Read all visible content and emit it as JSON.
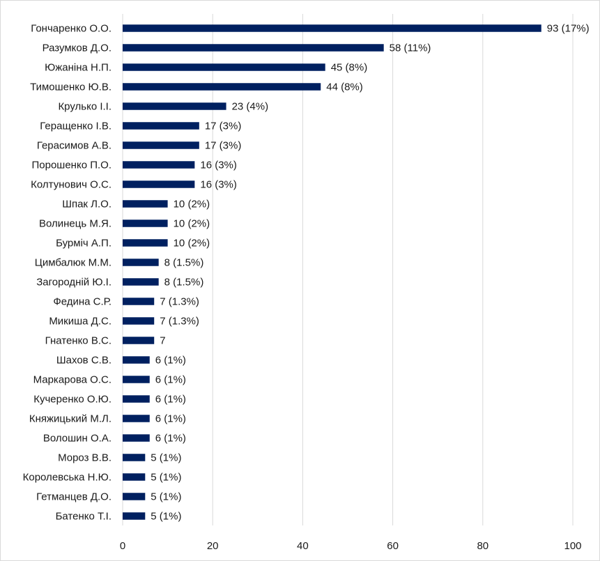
{
  "chart_data": {
    "type": "bar",
    "orientation": "horizontal",
    "title": "",
    "xlabel": "",
    "ylabel": "",
    "xlim": [
      0,
      100
    ],
    "x_ticks": [
      0,
      20,
      40,
      60,
      80,
      100
    ],
    "grid": "vertical",
    "legend": "none",
    "bar_color": "#002060",
    "categories": [
      "Гончаренко О.О.",
      "Разумков Д.О.",
      "Южаніна Н.П.",
      "Тимошенко Ю.В.",
      "Крулько І.І.",
      "Геращенко І.В.",
      "Герасимов А.В.",
      "Порошенко П.О.",
      "Колтунович О.С.",
      "Шпак Л.О.",
      "Волинець М.Я.",
      "Бурміч А.П.",
      "Цимбалюк М.М.",
      "Загородній Ю.І.",
      "Федина С.Р.",
      "Микиша Д.С.",
      "Гнатенко В.С.",
      "Шахов С.В.",
      "Маркарова О.С.",
      "Кучеренко О.Ю.",
      "Княжицький М.Л.",
      "Волошин О.А.",
      "Мороз В.В.",
      "Королевська Н.Ю.",
      "Гетманцев Д.О.",
      "Батенко Т.І."
    ],
    "values": [
      93,
      58,
      45,
      44,
      23,
      17,
      17,
      16,
      16,
      10,
      10,
      10,
      8,
      8,
      7,
      7,
      7,
      6,
      6,
      6,
      6,
      6,
      5,
      5,
      5,
      5
    ],
    "data_labels": [
      "93 (17%)",
      "58 (11%)",
      "45 (8%)",
      "44 (8%)",
      "23 (4%)",
      "17 (3%)",
      "17 (3%)",
      "16 (3%)",
      "16 (3%)",
      "10 (2%)",
      "10 (2%)",
      "10 (2%)",
      "8 (1.5%)",
      "8 (1.5%)",
      "7 (1.3%)",
      "7 (1.3%)",
      "7",
      "6 (1%)",
      "6 (1%)",
      "6 (1%)",
      "6 (1%)",
      "6 (1%)",
      "5 (1%)",
      "5 (1%)",
      "5 (1%)",
      "5 (1%)"
    ]
  }
}
